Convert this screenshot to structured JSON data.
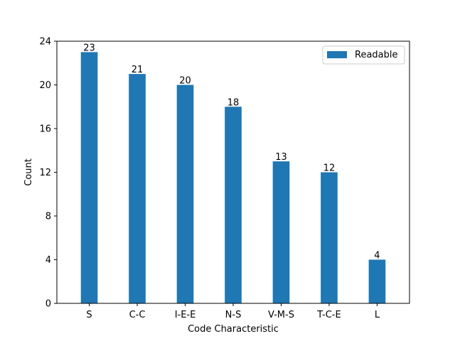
{
  "chart_data": {
    "type": "bar",
    "title": "",
    "xlabel": "Code Characteristic",
    "ylabel": "Count",
    "ylim": [
      0,
      24
    ],
    "yticks": [
      0,
      4,
      8,
      12,
      16,
      20,
      24
    ],
    "categories": [
      "S",
      "C-C",
      "I-E-E",
      "N-S",
      "V-M-S",
      "T-C-E",
      "L"
    ],
    "series": [
      {
        "name": "Readable",
        "values": [
          23,
          21,
          20,
          18,
          13,
          12,
          4
        ],
        "color": "#1f77b4"
      }
    ],
    "data_labels": true,
    "legend": {
      "position": "top-right"
    },
    "grid": false
  }
}
